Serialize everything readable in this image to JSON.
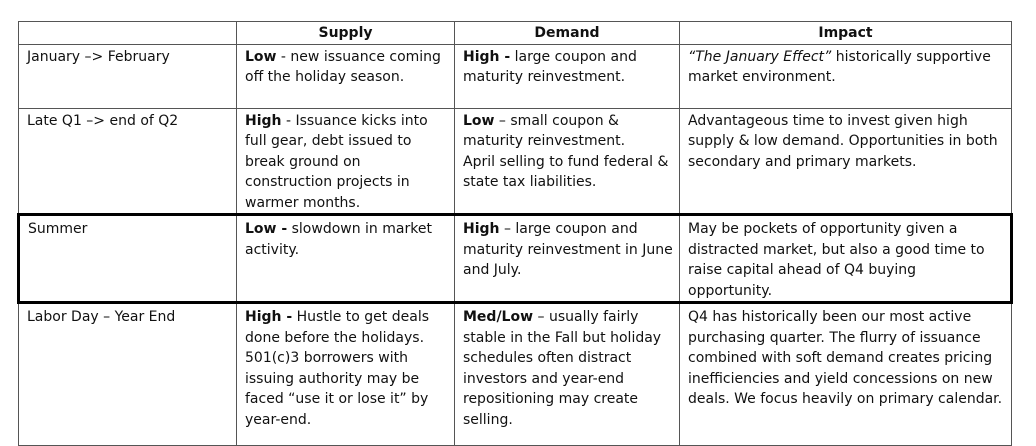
{
  "headers": [
    "",
    "Supply",
    "Demand",
    "Impact"
  ],
  "rows": [
    {
      "period": "January –> February",
      "supply": {
        "lead": "Low",
        "text": " - new issuance coming off the holiday season."
      },
      "demand": {
        "lead": "High -",
        "text": " large coupon and maturity reinvestment."
      },
      "impact": {
        "italic": "“The January Effect”",
        "text": " historically supportive market environment."
      }
    },
    {
      "period": "Late Q1 –> end of Q2",
      "supply": {
        "lead": "High",
        "text": " - Issuance kicks into full gear, debt issued to break ground on construction projects in warmer months."
      },
      "demand": {
        "lead": "Low",
        "text": " – small coupon & maturity reinvestment.",
        "extra": "April selling to fund federal & state tax liabilities."
      },
      "impact": {
        "text": "Advantageous time to invest given high supply & low demand. Opportunities in both secondary and primary markets."
      }
    },
    {
      "period": "Summer",
      "supply": {
        "lead": "Low -",
        "text": " slowdown in market activity."
      },
      "demand": {
        "lead": "High",
        "text": " – large coupon and maturity reinvestment in June and July."
      },
      "impact": {
        "text": "May be pockets of opportunity given a distracted market, but also a good time to raise capital ahead of Q4 buying opportunity."
      }
    },
    {
      "period": "Labor Day – Year End",
      "supply": {
        "lead": "High -",
        "text": " Hustle to get deals done before the holidays. 501(c)3 borrowers with issuing authority may be faced “use it or lose it” by year-end."
      },
      "demand": {
        "lead": "Med/Low",
        "text": " – usually fairly stable in the Fall but holiday schedules often distract investors and year-end repositioning may create selling."
      },
      "impact": {
        "text": "Q4 has historically been our most active purchasing quarter. The flurry of issuance combined with soft demand creates pricing inefficiencies and yield concessions on new deals. We focus heavily on primary calendar."
      }
    }
  ]
}
